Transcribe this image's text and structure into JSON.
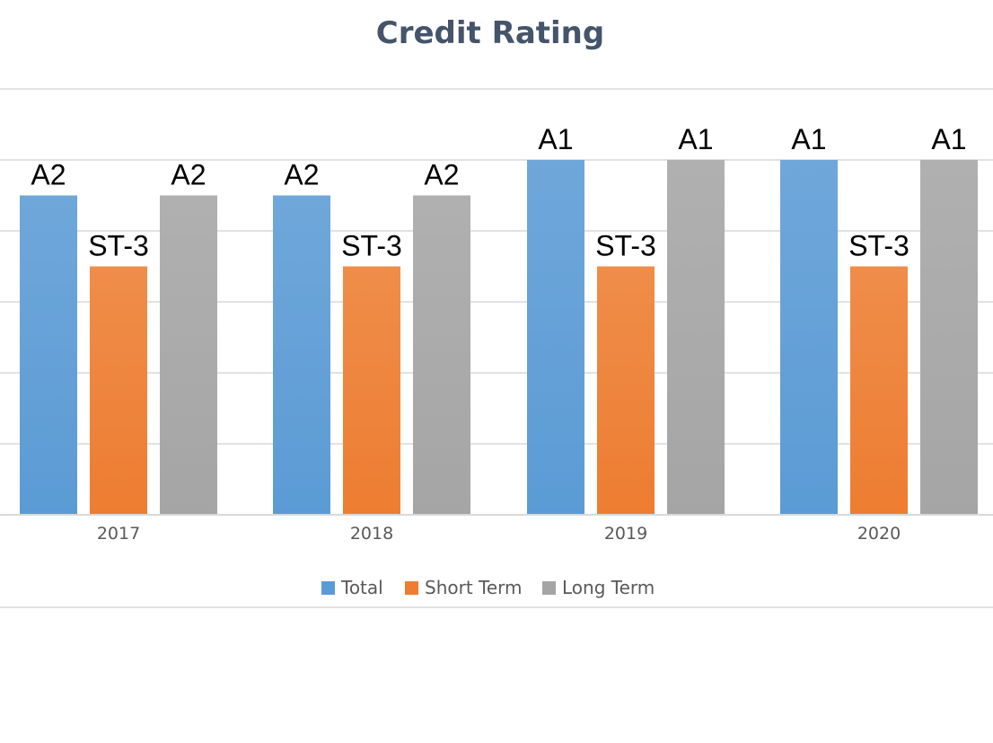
{
  "chart_data": {
    "type": "bar",
    "title": "Credit Rating",
    "xlabel": "",
    "ylabel": "",
    "categories": [
      "2017",
      "2018",
      "2019",
      "2020"
    ],
    "ylim": [
      0,
      6
    ],
    "grid": true,
    "legend_position": "bottom",
    "series": [
      {
        "name": "Total",
        "color": "#5b9bd5",
        "values": [
          4.5,
          4.5,
          5,
          5
        ],
        "labels": [
          "A2",
          "A2",
          "A1",
          "A1"
        ]
      },
      {
        "name": "Short Term",
        "color": "#ed7d31",
        "values": [
          3.5,
          3.5,
          3.5,
          3.5
        ],
        "labels": [
          "ST-3",
          "ST-3",
          "ST-3",
          "ST-3"
        ]
      },
      {
        "name": "Long Term",
        "color": "#a5a5a5",
        "values": [
          4.5,
          4.5,
          5,
          5
        ],
        "labels": [
          "A2",
          "A2",
          "A1",
          "A1"
        ]
      }
    ]
  }
}
